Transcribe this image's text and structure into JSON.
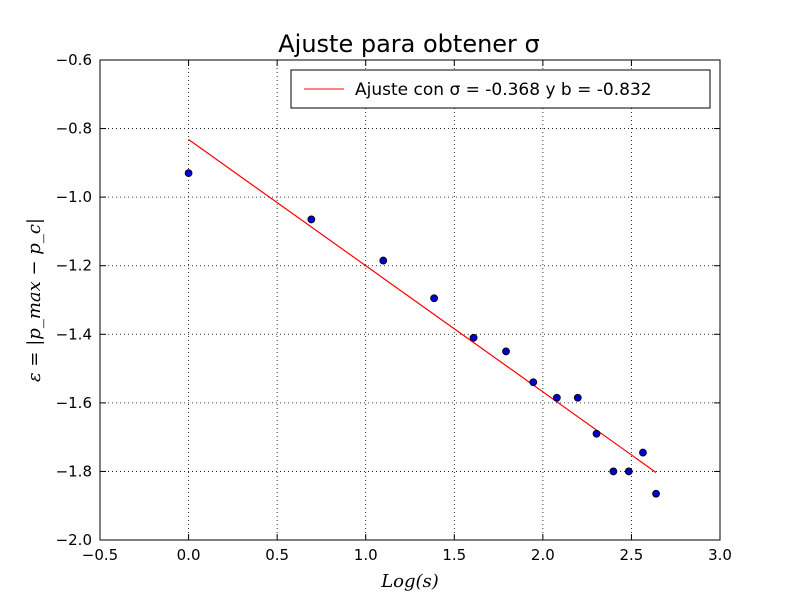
{
  "chart_data": {
    "type": "scatter",
    "title": "Ajuste para obtener σ",
    "xlabel": "Log(s)",
    "ylabel": "ε = |p_max − p_c|",
    "xlim": [
      -0.5,
      3.0
    ],
    "ylim": [
      -2.0,
      -0.6
    ],
    "xticks": [
      "−0.5",
      "0.0",
      "0.5",
      "1.0",
      "1.5",
      "2.0",
      "2.5",
      "3.0"
    ],
    "xtick_values": [
      -0.5,
      0.0,
      0.5,
      1.0,
      1.5,
      2.0,
      2.5,
      3.0
    ],
    "yticks": [
      "−0.6",
      "−0.8",
      "−1.0",
      "−1.2",
      "−1.4",
      "−1.6",
      "−1.8",
      "−2.0"
    ],
    "ytick_values": [
      -0.6,
      -0.8,
      -1.0,
      -1.2,
      -1.4,
      -1.6,
      -1.8,
      -2.0
    ],
    "grid": true,
    "legend_placement": "top-right",
    "points": {
      "color": "#0000cc",
      "x": [
        0.0,
        0.693,
        1.099,
        1.386,
        1.609,
        1.792,
        1.946,
        2.079,
        2.197,
        2.303,
        2.398,
        2.485,
        2.565,
        2.639
      ],
      "y": [
        -0.93,
        -1.065,
        -1.185,
        -1.295,
        -1.41,
        -1.45,
        -1.54,
        -1.585,
        -1.585,
        -1.69,
        -1.8,
        -1.8,
        -1.745,
        -1.865
      ]
    },
    "series": [
      {
        "name": "Ajuste con σ = -0.368 y b = -0.832",
        "type": "line",
        "color": "#ff0000",
        "x": [
          0.0,
          2.639
        ],
        "y": [
          -0.832,
          -1.803
        ]
      }
    ]
  }
}
